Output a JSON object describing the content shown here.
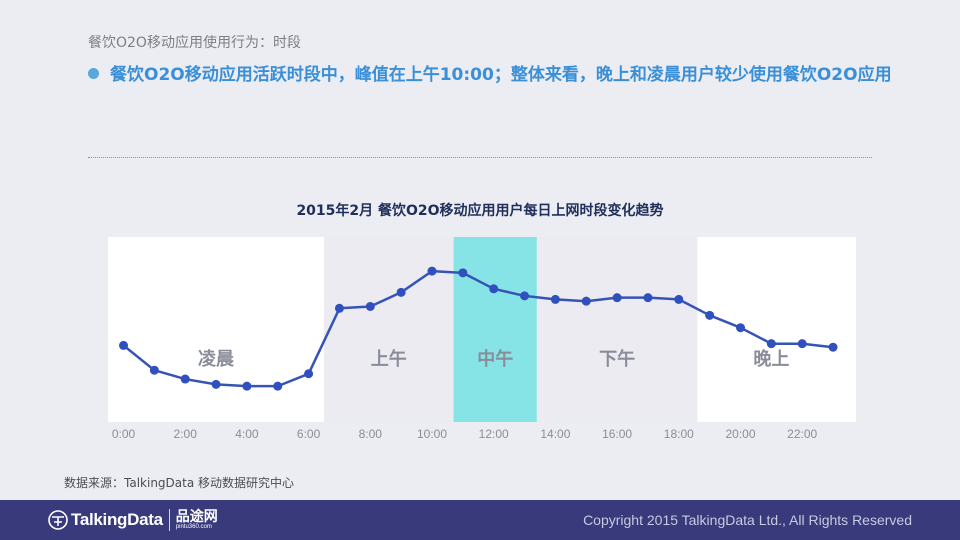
{
  "header": {
    "breadcrumb": "餐饮O2O移动应用使用行为：时段",
    "bullet": "餐饮O2O移动应用活跃时段中，峰值在上午10:00；整体来看，晚上和凌晨用户较少使用餐饮O2O应用"
  },
  "chart_data": {
    "type": "line",
    "title": "2015年2月 餐饮O2O移动应用用户每日上网时段变化趋势",
    "x_unit": "hour",
    "x": [
      0,
      1,
      2,
      3,
      4,
      5,
      6,
      7,
      8,
      9,
      10,
      11,
      12,
      13,
      14,
      15,
      16,
      17,
      18,
      19,
      20,
      21,
      22,
      23
    ],
    "x_tick_labels": [
      "0:00",
      "2:00",
      "4:00",
      "6:00",
      "8:00",
      "10:00",
      "12:00",
      "14:00",
      "16:00",
      "18:00",
      "20:00",
      "22:00"
    ],
    "x_tick_values": [
      0,
      2,
      4,
      6,
      8,
      10,
      12,
      14,
      16,
      18,
      20,
      22
    ],
    "values": [
      41,
      27,
      22,
      19,
      18,
      18,
      25,
      62,
      63,
      71,
      83,
      82,
      73,
      69,
      67,
      66,
      68,
      68,
      67,
      58,
      51,
      42,
      42,
      40
    ],
    "ylim": [
      0,
      100
    ],
    "y_axis_visible": false,
    "grid": false,
    "legend": "none",
    "line_color": "#3654b5",
    "marker_color": "#2f50be",
    "period_bands": [
      {
        "label": "凌晨",
        "start": -0.5,
        "end": 6.5,
        "color": "#ffffff",
        "label_x": 3
      },
      {
        "label": "上午",
        "start": 6.5,
        "end": 10.7,
        "color": "#ebebf1",
        "label_x": 8.6
      },
      {
        "label": "中午",
        "start": 10.7,
        "end": 13.4,
        "color": "#86e4e6",
        "label_x": 12.05
      },
      {
        "label": "下午",
        "start": 13.4,
        "end": 18.6,
        "color": "#ebebf1",
        "label_x": 16
      },
      {
        "label": "晚上",
        "start": 18.6,
        "end": 23.8,
        "color": "#ffffff",
        "label_x": 21
      }
    ]
  },
  "source": "数据来源：TalkingData 移动数据研究中心",
  "footer": {
    "logo_text": "TalkingData",
    "partner_cn": "品途网",
    "partner_en": "pintu360.com",
    "copyright": "Copyright 2015 TalkingData Ltd., All Rights Reserved"
  }
}
